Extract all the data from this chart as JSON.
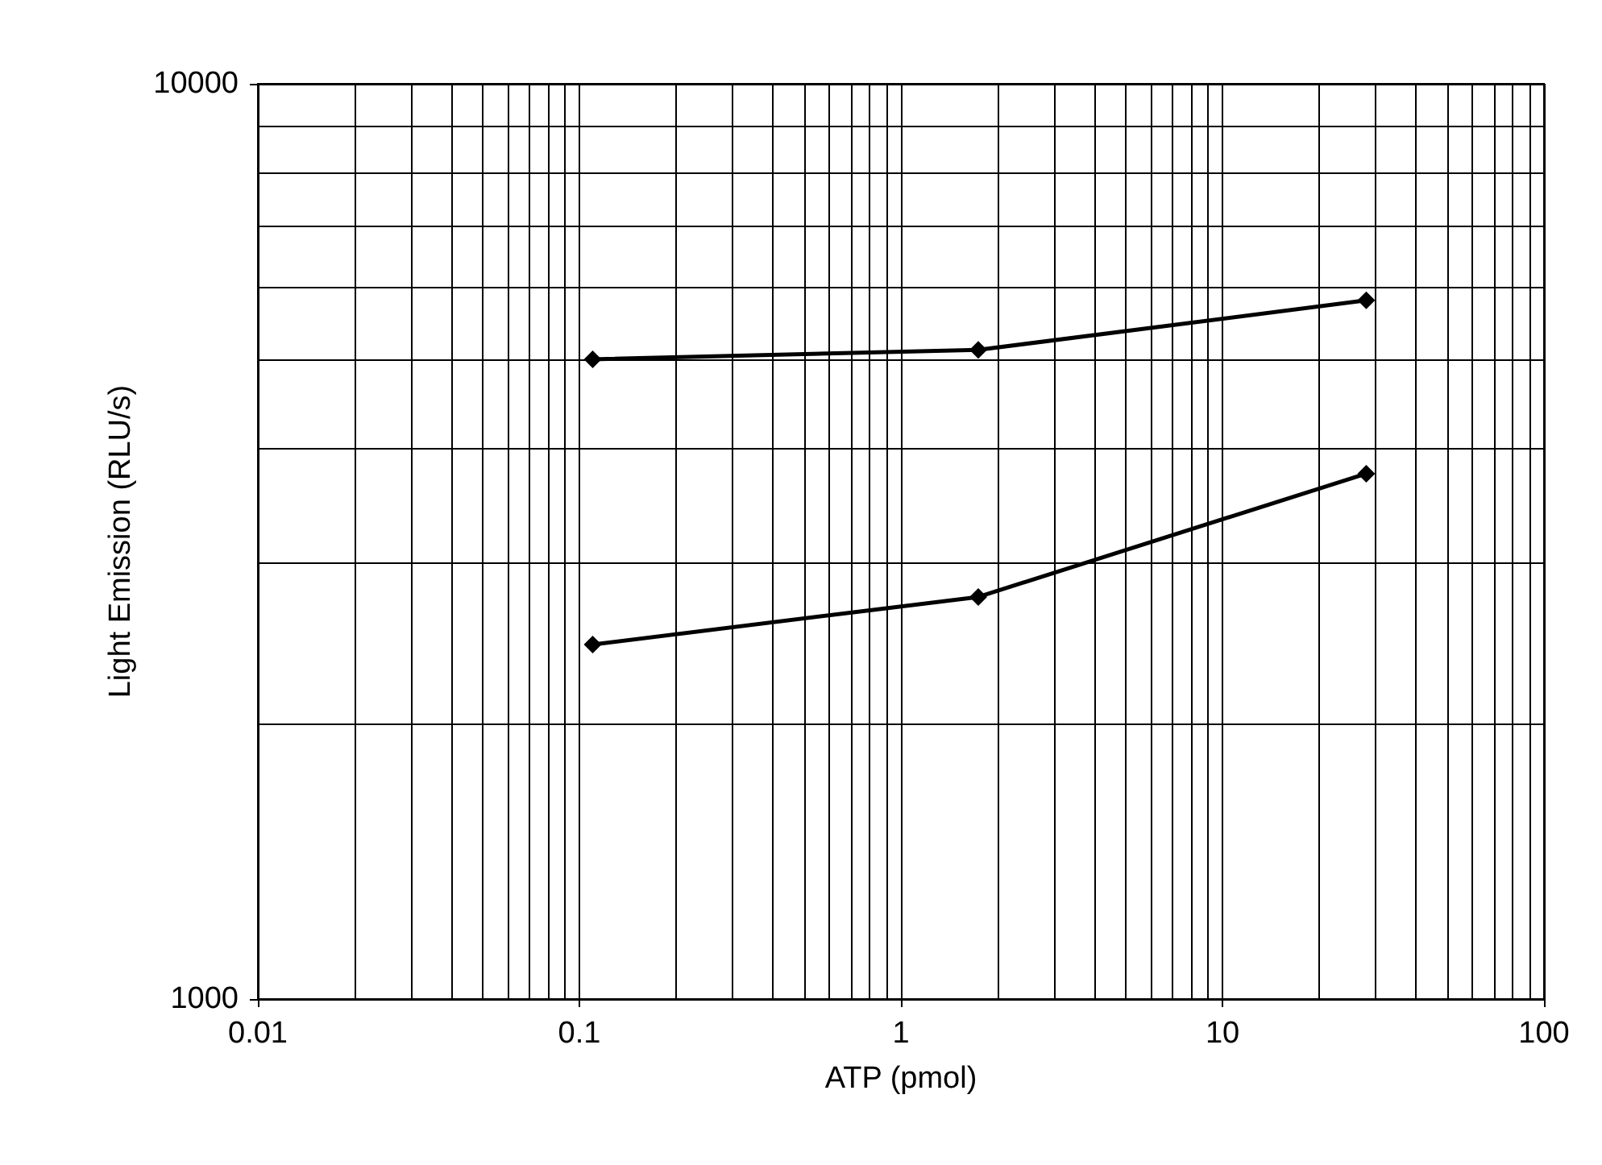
{
  "chart_data": {
    "type": "line",
    "xlabel": "ATP (pmol)",
    "ylabel": "Light Emission (RLU/s)",
    "log": "xy",
    "xlim": [
      0.01,
      100
    ],
    "ylim": [
      1000,
      10000
    ],
    "xticks": [
      0.01,
      0.1,
      1,
      10,
      100
    ],
    "yticks": [
      1000,
      10000
    ],
    "grid": true,
    "marker": "diamond",
    "line_style": "solid",
    "series": [
      {
        "color": "#000000",
        "x": [
          0.11,
          1.74,
          28
        ],
        "values": [
          5000,
          5120,
          5800
        ]
      },
      {
        "color": "#000000",
        "x": [
          0.11,
          1.74,
          28
        ],
        "values": [
          2440,
          2750,
          3750
        ]
      }
    ]
  }
}
